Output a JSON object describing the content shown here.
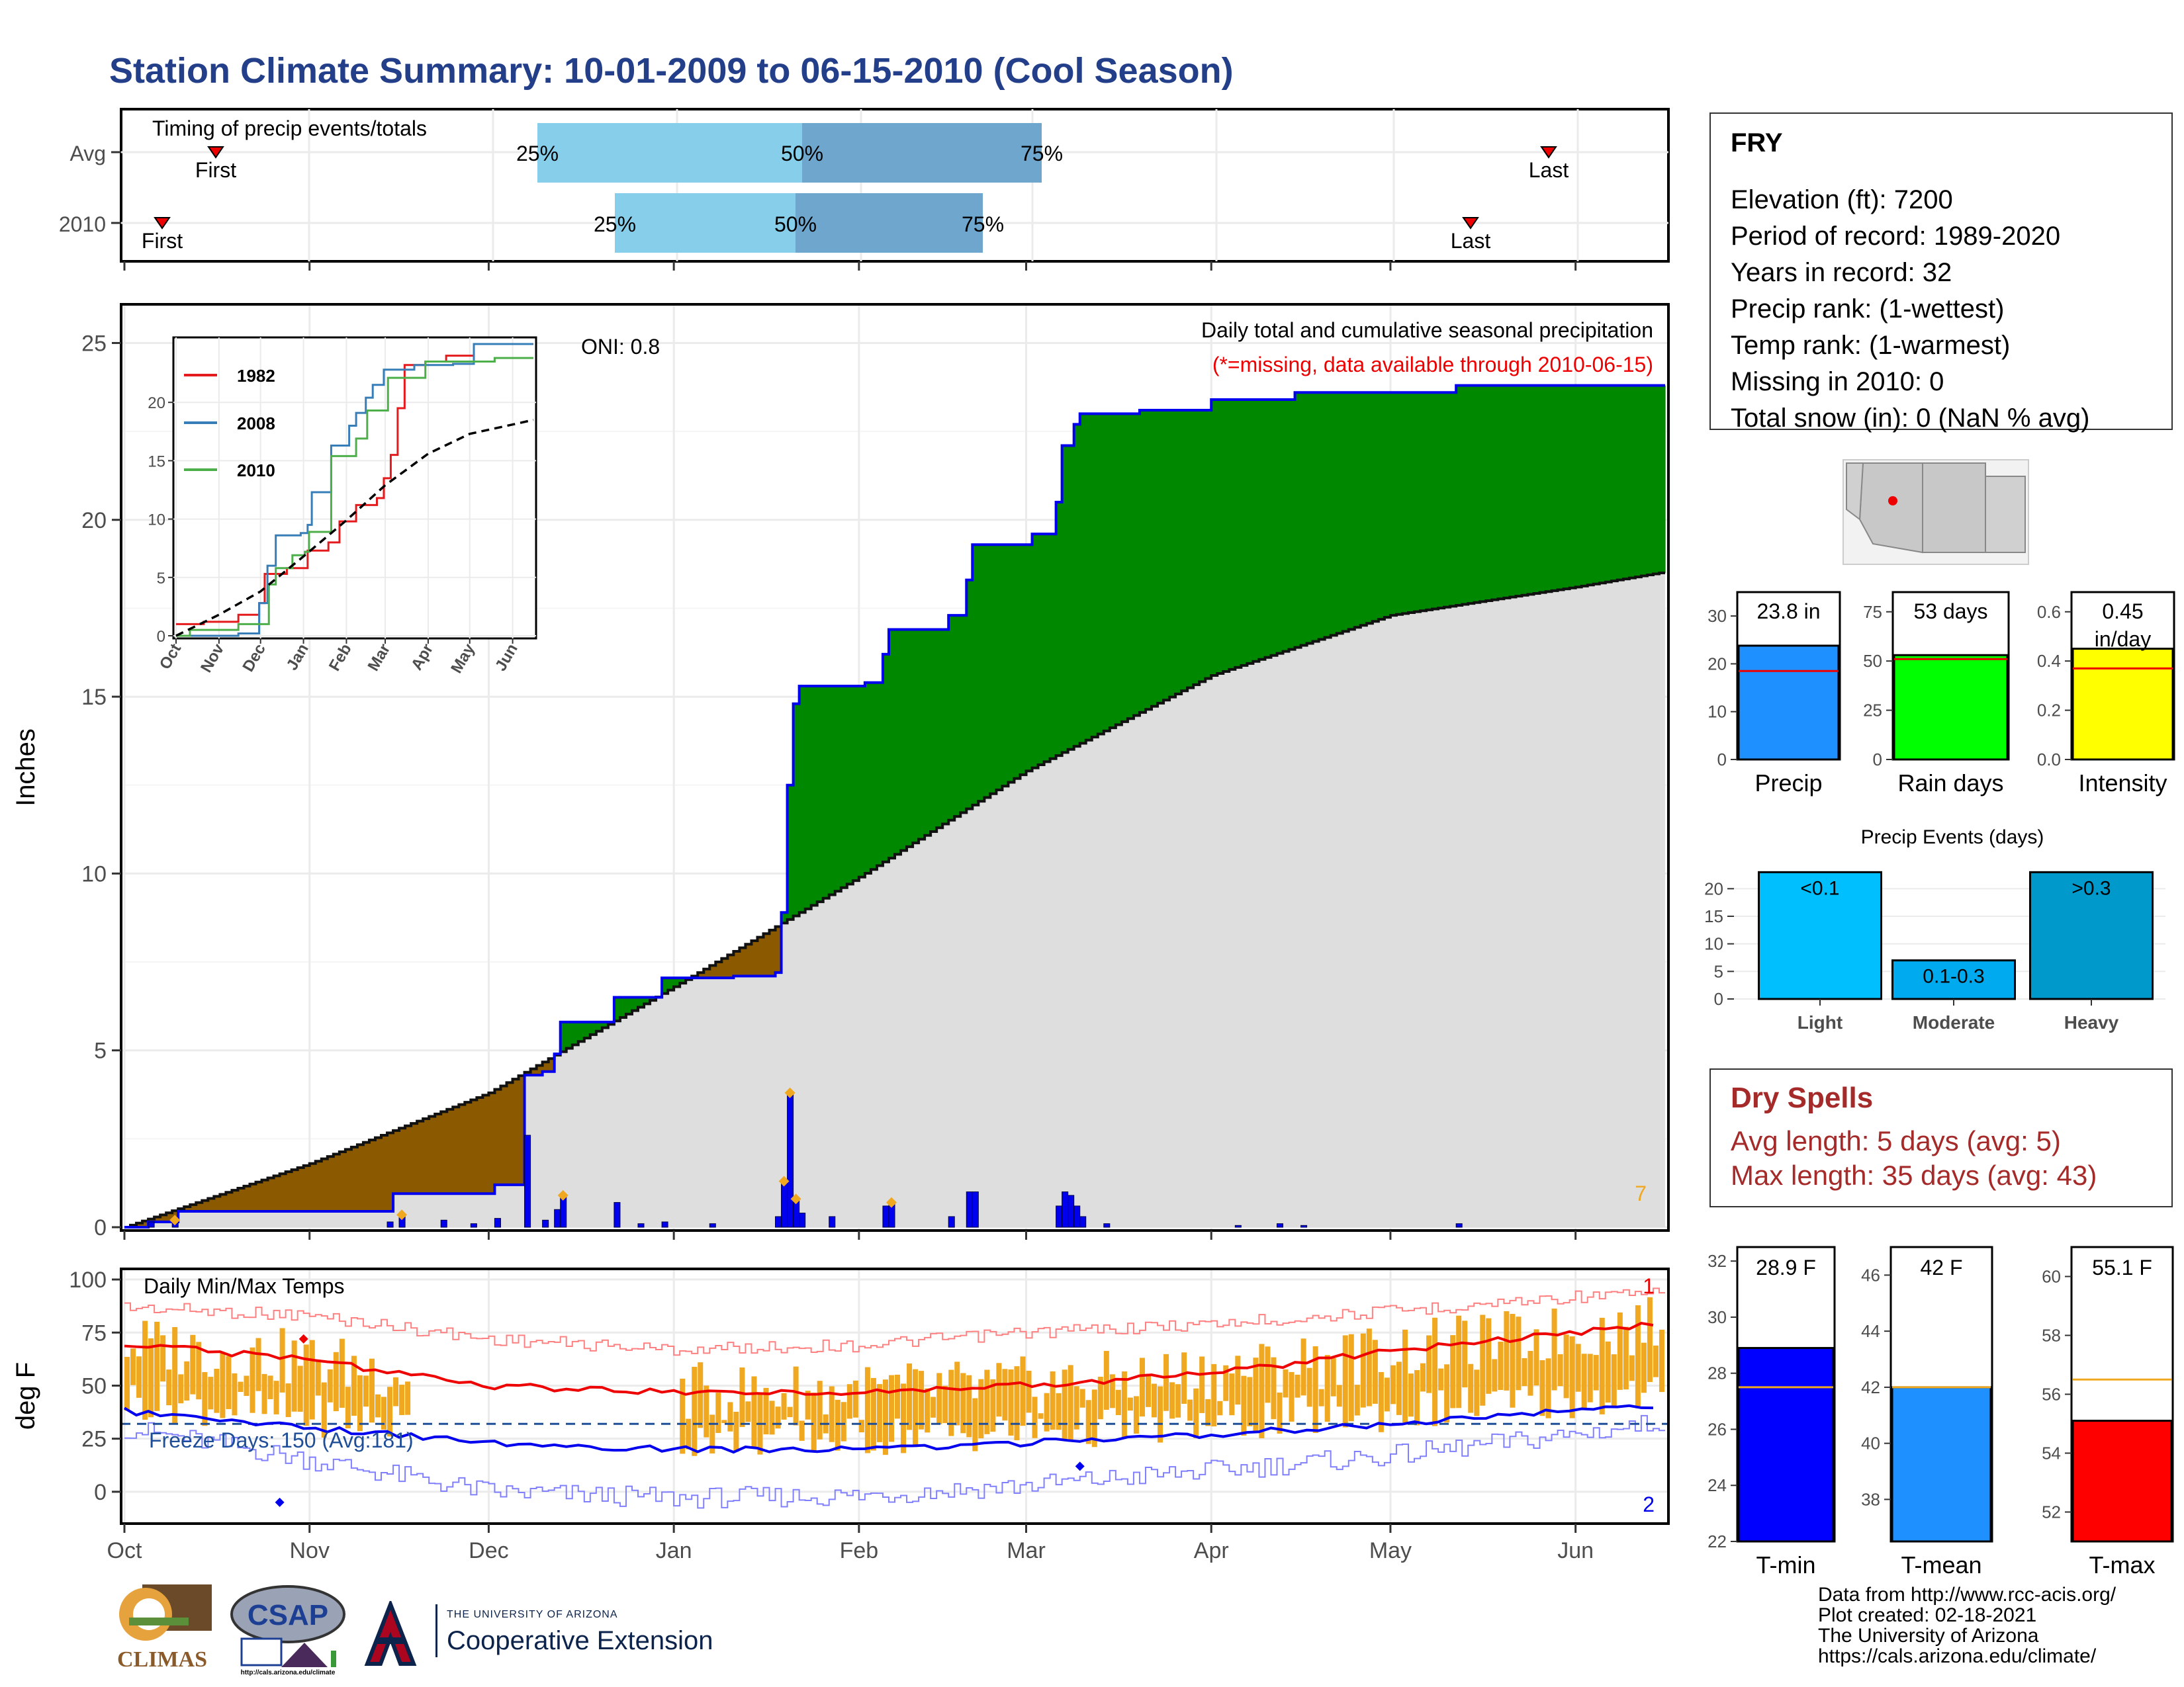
{
  "title": "Station Climate Summary: 10-01-2009 to 06-15-2010 (Cool Season)",
  "timing": {
    "label": "Timing of precip events/totals",
    "rows": [
      {
        "name": "Avg",
        "first": "First",
        "last": "Last",
        "p25": "25%",
        "p50": "50%",
        "p75": "75%"
      },
      {
        "name": "2010",
        "first": "First",
        "last": "Last",
        "p25": "25%",
        "p50": "50%",
        "p75": "75%"
      }
    ]
  },
  "station": {
    "name": "FRY",
    "lines": [
      "Elevation (ft): 7200",
      "Period of record: 1989-2020",
      "Years in record: 32",
      "Precip rank:  (1-wettest)",
      "Temp rank:  (1-warmest)",
      "Missing in 2010: 0",
      "Total snow (in): 0 (NaN % avg)"
    ]
  },
  "main_chart": {
    "ylabel": "Inches",
    "title": "Daily total and cumulative seasonal precipitation",
    "subtitle": "(*=missing, data available through 2010-06-15)",
    "oni": "ONI: 0.8",
    "corner_count": "7",
    "yticks": [
      "0",
      "5",
      "10",
      "15",
      "20",
      "25"
    ],
    "xticks": [
      "Oct",
      "Nov",
      "Dec",
      "Jan",
      "Feb",
      "Mar",
      "Apr",
      "May",
      "Jun"
    ]
  },
  "inset": {
    "legend": [
      "1982",
      "2008",
      "2010"
    ],
    "yticks": [
      "0",
      "5",
      "10",
      "15",
      "20"
    ],
    "xticks": [
      "Oct",
      "Nov",
      "Dec",
      "Jan",
      "Feb",
      "Mar",
      "Apr",
      "May",
      "Jun"
    ]
  },
  "temp_chart": {
    "ylabel": "deg F",
    "title": "Daily Min/Max Temps",
    "freeze": "Freeze Days: 150 (Avg:181)",
    "rank_max": "1",
    "rank_min": "2",
    "yticks": [
      "0",
      "25",
      "50",
      "75",
      "100"
    ]
  },
  "summary_bars": [
    {
      "value_label": "23.8 in",
      "xlabel": "Precip",
      "yticks": [
        "0",
        "10",
        "20",
        "30"
      ]
    },
    {
      "value_label": "53 days",
      "xlabel": "Rain days",
      "yticks": [
        "0",
        "25",
        "50",
        "75"
      ]
    },
    {
      "value_label": "0.45 in/day",
      "xlabel": "Intensity",
      "yticks": [
        "0.0",
        "0.2",
        "0.4",
        "0.6"
      ]
    }
  ],
  "events": {
    "title": "Precip Events (days)",
    "bars": [
      {
        "label": "<0.1",
        "xlabel": "Light"
      },
      {
        "label": "0.1-0.3",
        "xlabel": "Moderate"
      },
      {
        "label": ">0.3",
        "xlabel": "Heavy"
      }
    ],
    "yticks": [
      "0",
      "5",
      "10",
      "15",
      "20"
    ]
  },
  "dry_spells": {
    "title": "Dry Spells",
    "avg": "Avg length: 5 days (avg: 5)",
    "max": "Max length: 35 days (avg: 43)"
  },
  "temp_bars": [
    {
      "value_label": "28.9 F",
      "xlabel": "T-min",
      "yticks": [
        "22",
        "24",
        "26",
        "28",
        "30",
        "32"
      ]
    },
    {
      "value_label": "42 F",
      "xlabel": "T-mean",
      "yticks": [
        "38",
        "40",
        "42",
        "44",
        "46"
      ]
    },
    {
      "value_label": "55.1 F",
      "xlabel": "T-max",
      "yticks": [
        "52",
        "54",
        "56",
        "58",
        "60"
      ]
    }
  ],
  "footer": [
    "Data from http://www.rcc-acis.org/",
    "Plot created: 02-18-2021",
    "The University of Arizona",
    "https://cals.arizona.edu/climate/"
  ],
  "logos": {
    "climas": "CLIMAS",
    "csap": "CSAP",
    "csap_url": "http://cals.arizona.edu/climate",
    "ua_small": "THE UNIVERSITY OF ARIZONA",
    "ua_big": "Cooperative Extension"
  },
  "colors": {
    "title": "#233f8a",
    "green": "#008800",
    "brown": "#8b5a00",
    "grey": "#dedede",
    "blue": "#0000ee",
    "orange": "#f0a820",
    "red": "#ee0000",
    "light_blue": "#87ceeb",
    "steel": "#6ea6cd",
    "dry": "#a52a2a"
  },
  "chart_data": [
    {
      "type": "area",
      "name": "main_precip",
      "x_range": [
        "2009-10-01",
        "2010-06-15"
      ],
      "ylim": [
        0,
        26
      ],
      "cumulative_2010": [
        {
          "date": "2009-10-01",
          "in": 0.0
        },
        {
          "date": "2009-10-05",
          "in": 0.15
        },
        {
          "date": "2009-10-10",
          "in": 0.45
        },
        {
          "date": "2009-11-14",
          "in": 0.45
        },
        {
          "date": "2009-11-15",
          "in": 0.95
        },
        {
          "date": "2009-12-01",
          "in": 0.95
        },
        {
          "date": "2009-12-02",
          "in": 1.2
        },
        {
          "date": "2009-12-06",
          "in": 1.2
        },
        {
          "date": "2009-12-07",
          "in": 4.3
        },
        {
          "date": "2009-12-10",
          "in": 4.4
        },
        {
          "date": "2009-12-12",
          "in": 4.9
        },
        {
          "date": "2009-12-13",
          "in": 5.8
        },
        {
          "date": "2009-12-21",
          "in": 5.8
        },
        {
          "date": "2009-12-22",
          "in": 6.5
        },
        {
          "date": "2009-12-30",
          "in": 7.05
        },
        {
          "date": "2010-01-11",
          "in": 7.1
        },
        {
          "date": "2010-01-18",
          "in": 7.2
        },
        {
          "date": "2010-01-19",
          "in": 8.9
        },
        {
          "date": "2010-01-20",
          "in": 12.5
        },
        {
          "date": "2010-01-21",
          "in": 14.8
        },
        {
          "date": "2010-01-22",
          "in": 15.3
        },
        {
          "date": "2010-02-02",
          "in": 15.4
        },
        {
          "date": "2010-02-05",
          "in": 16.2
        },
        {
          "date": "2010-02-06",
          "in": 16.9
        },
        {
          "date": "2010-02-16",
          "in": 17.3
        },
        {
          "date": "2010-02-19",
          "in": 18.3
        },
        {
          "date": "2010-02-20",
          "in": 19.3
        },
        {
          "date": "2010-03-02",
          "in": 19.6
        },
        {
          "date": "2010-03-06",
          "in": 20.5
        },
        {
          "date": "2010-03-07",
          "in": 22.1
        },
        {
          "date": "2010-03-09",
          "in": 22.7
        },
        {
          "date": "2010-03-10",
          "in": 23.0
        },
        {
          "date": "2010-03-20",
          "in": 23.1
        },
        {
          "date": "2010-04-01",
          "in": 23.4
        },
        {
          "date": "2010-04-15",
          "in": 23.6
        },
        {
          "date": "2010-05-12",
          "in": 23.8
        },
        {
          "date": "2010-06-15",
          "in": 23.8
        }
      ],
      "cumulative_avg": [
        {
          "date": "2009-10-01",
          "in": 0.0
        },
        {
          "date": "2009-11-01",
          "in": 1.8
        },
        {
          "date": "2009-12-01",
          "in": 3.8
        },
        {
          "date": "2010-01-01",
          "in": 6.8
        },
        {
          "date": "2010-02-01",
          "in": 9.9
        },
        {
          "date": "2010-03-01",
          "in": 12.9
        },
        {
          "date": "2010-04-01",
          "in": 15.6
        },
        {
          "date": "2010-05-01",
          "in": 17.3
        },
        {
          "date": "2010-06-01",
          "in": 18.1
        },
        {
          "date": "2010-06-15",
          "in": 18.5
        }
      ],
      "daily_2010": [
        {
          "date": "2009-10-05",
          "in": 0.15
        },
        {
          "date": "2009-10-09",
          "in": 0.2
        },
        {
          "date": "2009-11-14",
          "in": 0.15
        },
        {
          "date": "2009-11-16",
          "in": 0.35
        },
        {
          "date": "2009-11-23",
          "in": 0.2
        },
        {
          "date": "2009-11-28",
          "in": 0.1
        },
        {
          "date": "2009-12-02",
          "in": 0.25
        },
        {
          "date": "2009-12-07",
          "in": 2.6
        },
        {
          "date": "2009-12-10",
          "in": 0.2
        },
        {
          "date": "2009-12-12",
          "in": 0.5
        },
        {
          "date": "2009-12-13",
          "in": 0.9
        },
        {
          "date": "2009-12-22",
          "in": 0.7
        },
        {
          "date": "2009-12-26",
          "in": 0.1
        },
        {
          "date": "2009-12-30",
          "in": 0.15
        },
        {
          "date": "2010-01-07",
          "in": 0.1
        },
        {
          "date": "2010-01-18",
          "in": 0.3
        },
        {
          "date": "2010-01-19",
          "in": 1.3
        },
        {
          "date": "2010-01-20",
          "in": 3.8
        },
        {
          "date": "2010-01-21",
          "in": 0.8
        },
        {
          "date": "2010-01-22",
          "in": 0.4
        },
        {
          "date": "2010-01-27",
          "in": 0.3
        },
        {
          "date": "2010-02-05",
          "in": 0.6
        },
        {
          "date": "2010-02-06",
          "in": 0.7
        },
        {
          "date": "2010-02-16",
          "in": 0.3
        },
        {
          "date": "2010-02-19",
          "in": 1.0
        },
        {
          "date": "2010-02-20",
          "in": 1.0
        },
        {
          "date": "2010-03-06",
          "in": 0.6
        },
        {
          "date": "2010-03-07",
          "in": 1.0
        },
        {
          "date": "2010-03-08",
          "in": 0.9
        },
        {
          "date": "2010-03-09",
          "in": 0.6
        },
        {
          "date": "2010-03-10",
          "in": 0.3
        },
        {
          "date": "2010-03-14",
          "in": 0.1
        },
        {
          "date": "2010-04-05",
          "in": 0.05
        },
        {
          "date": "2010-04-12",
          "in": 0.1
        },
        {
          "date": "2010-04-16",
          "in": 0.05
        },
        {
          "date": "2010-05-12",
          "in": 0.1
        }
      ],
      "heavy_markers": [
        "2009-10-09",
        "2009-11-16",
        "2009-12-13",
        "2010-01-19",
        "2010-01-20",
        "2010-01-21",
        "2010-02-06"
      ]
    },
    {
      "type": "line",
      "name": "inset_cumulative",
      "xlim": [
        "10-01",
        "06-15"
      ],
      "ylim": [
        0,
        25
      ],
      "series": [
        {
          "name": "1982",
          "points": [
            [
              0,
              1.0
            ],
            [
              20,
              1.2
            ],
            [
              45,
              1.8
            ],
            [
              60,
              2.8
            ],
            [
              64,
              5.3
            ],
            [
              80,
              5.8
            ],
            [
              95,
              7.3
            ],
            [
              110,
              8.0
            ],
            [
              118,
              9.8
            ],
            [
              130,
              11.2
            ],
            [
              145,
              11.8
            ],
            [
              150,
              13.5
            ],
            [
              155,
              15.5
            ],
            [
              160,
              19.5
            ],
            [
              165,
              23.2
            ],
            [
              180,
              23.5
            ],
            [
              195,
              24.0
            ],
            [
              215,
              25.0
            ],
            [
              258,
              25.0
            ]
          ]
        },
        {
          "name": "2008",
          "points": [
            [
              0,
              0.0
            ],
            [
              45,
              0.2
            ],
            [
              60,
              2.8
            ],
            [
              66,
              6.0
            ],
            [
              72,
              8.6
            ],
            [
              90,
              8.8
            ],
            [
              95,
              9.5
            ],
            [
              98,
              12.3
            ],
            [
              112,
              16.3
            ],
            [
              125,
              18.0
            ],
            [
              130,
              19.1
            ],
            [
              137,
              20.4
            ],
            [
              142,
              21.5
            ],
            [
              150,
              22.8
            ],
            [
              172,
              23.2
            ],
            [
              200,
              23.3
            ],
            [
              215,
              25.0
            ],
            [
              258,
              25.0
            ]
          ]
        },
        {
          "name": "2010",
          "points": [
            [
              0,
              0.0
            ],
            [
              10,
              0.5
            ],
            [
              45,
              1.0
            ],
            [
              67,
              4.4
            ],
            [
              72,
              5.8
            ],
            [
              84,
              6.9
            ],
            [
              93,
              7.2
            ],
            [
              96,
              8.9
            ],
            [
              112,
              15.4
            ],
            [
              130,
              16.9
            ],
            [
              138,
              19.3
            ],
            [
              153,
              22.1
            ],
            [
              180,
              23.5
            ],
            [
              230,
              23.8
            ],
            [
              258,
              23.8
            ]
          ]
        },
        {
          "name": "Avg",
          "points": [
            [
              0,
              0.0
            ],
            [
              31,
              1.8
            ],
            [
              61,
              3.8
            ],
            [
              92,
              6.8
            ],
            [
              123,
              9.9
            ],
            [
              151,
              12.9
            ],
            [
              182,
              15.6
            ],
            [
              212,
              17.3
            ],
            [
              243,
              18.1
            ],
            [
              258,
              18.5
            ]
          ]
        }
      ]
    },
    {
      "type": "line",
      "name": "daily_temps",
      "ylim": [
        -15,
        105
      ],
      "avg_max": [
        [
          0,
          70
        ],
        [
          31,
          62
        ],
        [
          61,
          50
        ],
        [
          92,
          47
        ],
        [
          123,
          47
        ],
        [
          151,
          50
        ],
        [
          182,
          56
        ],
        [
          212,
          66
        ],
        [
          243,
          75
        ],
        [
          258,
          79
        ]
      ],
      "avg_min": [
        [
          0,
          38
        ],
        [
          31,
          30
        ],
        [
          61,
          23
        ],
        [
          92,
          20
        ],
        [
          123,
          20
        ],
        [
          151,
          23
        ],
        [
          182,
          27
        ],
        [
          212,
          32
        ],
        [
          243,
          38
        ],
        [
          258,
          41
        ]
      ],
      "record_max": [
        [
          0,
          90
        ],
        [
          31,
          86
        ],
        [
          61,
          75
        ],
        [
          92,
          70
        ],
        [
          123,
          72
        ],
        [
          151,
          78
        ],
        [
          182,
          82
        ],
        [
          212,
          88
        ],
        [
          243,
          95
        ],
        [
          258,
          96
        ]
      ],
      "record_min": [
        [
          0,
          25
        ],
        [
          31,
          10
        ],
        [
          61,
          -5
        ],
        [
          92,
          -8
        ],
        [
          123,
          -7
        ],
        [
          151,
          -2
        ],
        [
          182,
          5
        ],
        [
          212,
          12
        ],
        [
          243,
          22
        ],
        [
          258,
          28
        ]
      ],
      "freeze_line": 32
    },
    {
      "type": "bar",
      "name": "season_totals",
      "categories": [
        "Precip",
        "Rain days",
        "Intensity"
      ],
      "values": [
        23.8,
        53,
        0.45
      ],
      "averages": [
        18.5,
        51,
        0.37
      ],
      "ylims": [
        [
          0,
          35
        ],
        [
          0,
          85
        ],
        [
          0,
          0.68
        ]
      ]
    },
    {
      "type": "bar",
      "name": "precip_events",
      "categories": [
        "Light",
        "Moderate",
        "Heavy"
      ],
      "values": [
        23,
        7,
        23
      ],
      "ylim": [
        0,
        24
      ]
    },
    {
      "type": "bar",
      "name": "season_temps",
      "categories": [
        "T-min",
        "T-mean",
        "T-max"
      ],
      "values": [
        28.9,
        42,
        55.1
      ],
      "averages": [
        27.5,
        42,
        56.5
      ],
      "ylims": [
        [
          22,
          32.5
        ],
        [
          36.5,
          47
        ],
        [
          51,
          61
        ]
      ]
    }
  ]
}
